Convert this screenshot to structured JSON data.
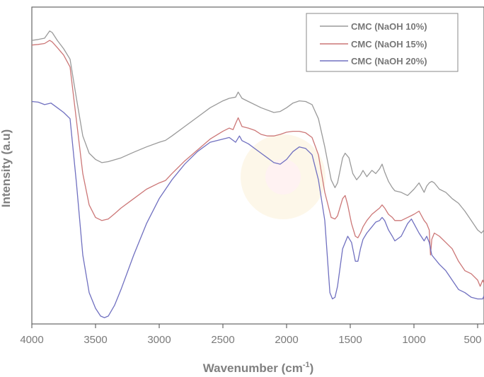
{
  "chart_data": {
    "type": "line",
    "title": "",
    "xlabel_main": "Wavenumber (cm",
    "xlabel_sup": "-1",
    "xlabel_close": ")",
    "ylabel": "Intensity (a.u)",
    "xlim": [
      4000,
      450
    ],
    "x_reversed": true,
    "xticks": [
      4000,
      3500,
      3000,
      2500,
      2000,
      1500,
      1000,
      500
    ],
    "y_ticks_shown": false,
    "ylim": [
      0,
      1
    ],
    "legend_position": "top-right",
    "series": [
      {
        "name": "CMC (NaOH 10%)",
        "color": "#9a9a9a",
        "points": [
          [
            4000,
            0.905
          ],
          [
            3950,
            0.908
          ],
          [
            3900,
            0.912
          ],
          [
            3860,
            0.935
          ],
          [
            3840,
            0.93
          ],
          [
            3800,
            0.905
          ],
          [
            3750,
            0.878
          ],
          [
            3700,
            0.845
          ],
          [
            3650,
            0.72
          ],
          [
            3600,
            0.6
          ],
          [
            3550,
            0.545
          ],
          [
            3500,
            0.525
          ],
          [
            3450,
            0.515
          ],
          [
            3400,
            0.518
          ],
          [
            3300,
            0.53
          ],
          [
            3200,
            0.548
          ],
          [
            3100,
            0.565
          ],
          [
            3000,
            0.58
          ],
          [
            2950,
            0.586
          ],
          [
            2900,
            0.6
          ],
          [
            2800,
            0.63
          ],
          [
            2700,
            0.66
          ],
          [
            2600,
            0.69
          ],
          [
            2500,
            0.712
          ],
          [
            2450,
            0.72
          ],
          [
            2400,
            0.724
          ],
          [
            2380,
            0.74
          ],
          [
            2350,
            0.72
          ],
          [
            2300,
            0.71
          ],
          [
            2200,
            0.69
          ],
          [
            2100,
            0.675
          ],
          [
            2050,
            0.678
          ],
          [
            2000,
            0.69
          ],
          [
            1950,
            0.705
          ],
          [
            1900,
            0.712
          ],
          [
            1850,
            0.71
          ],
          [
            1800,
            0.7
          ],
          [
            1750,
            0.655
          ],
          [
            1700,
            0.565
          ],
          [
            1650,
            0.46
          ],
          [
            1620,
            0.435
          ],
          [
            1600,
            0.45
          ],
          [
            1560,
            0.53
          ],
          [
            1540,
            0.545
          ],
          [
            1510,
            0.53
          ],
          [
            1480,
            0.48
          ],
          [
            1450,
            0.46
          ],
          [
            1420,
            0.475
          ],
          [
            1400,
            0.49
          ],
          [
            1370,
            0.47
          ],
          [
            1330,
            0.49
          ],
          [
            1300,
            0.48
          ],
          [
            1270,
            0.495
          ],
          [
            1250,
            0.51
          ],
          [
            1230,
            0.485
          ],
          [
            1200,
            0.455
          ],
          [
            1170,
            0.435
          ],
          [
            1150,
            0.425
          ],
          [
            1100,
            0.42
          ],
          [
            1050,
            0.41
          ],
          [
            1000,
            0.43
          ],
          [
            960,
            0.45
          ],
          [
            920,
            0.42
          ],
          [
            900,
            0.44
          ],
          [
            880,
            0.45
          ],
          [
            860,
            0.455
          ],
          [
            840,
            0.45
          ],
          [
            800,
            0.43
          ],
          [
            750,
            0.42
          ],
          [
            700,
            0.4
          ],
          [
            650,
            0.385
          ],
          [
            600,
            0.36
          ],
          [
            550,
            0.33
          ],
          [
            500,
            0.3
          ],
          [
            470,
            0.29
          ],
          [
            450,
            0.3
          ]
        ]
      },
      {
        "name": "CMC (NaOH 15%)",
        "color": "#cc7777",
        "points": [
          [
            4000,
            0.89
          ],
          [
            3950,
            0.892
          ],
          [
            3900,
            0.895
          ],
          [
            3860,
            0.905
          ],
          [
            3840,
            0.9
          ],
          [
            3800,
            0.882
          ],
          [
            3750,
            0.858
          ],
          [
            3700,
            0.82
          ],
          [
            3650,
            0.65
          ],
          [
            3600,
            0.48
          ],
          [
            3550,
            0.38
          ],
          [
            3500,
            0.34
          ],
          [
            3450,
            0.33
          ],
          [
            3400,
            0.335
          ],
          [
            3350,
            0.352
          ],
          [
            3300,
            0.37
          ],
          [
            3200,
            0.4
          ],
          [
            3100,
            0.43
          ],
          [
            3000,
            0.45
          ],
          [
            2950,
            0.458
          ],
          [
            2900,
            0.48
          ],
          [
            2800,
            0.52
          ],
          [
            2700,
            0.555
          ],
          [
            2600,
            0.59
          ],
          [
            2500,
            0.615
          ],
          [
            2450,
            0.625
          ],
          [
            2420,
            0.62
          ],
          [
            2400,
            0.64
          ],
          [
            2380,
            0.658
          ],
          [
            2350,
            0.63
          ],
          [
            2300,
            0.625
          ],
          [
            2250,
            0.618
          ],
          [
            2200,
            0.605
          ],
          [
            2150,
            0.6
          ],
          [
            2100,
            0.6
          ],
          [
            2050,
            0.605
          ],
          [
            2000,
            0.612
          ],
          [
            1950,
            0.615
          ],
          [
            1900,
            0.615
          ],
          [
            1850,
            0.61
          ],
          [
            1800,
            0.595
          ],
          [
            1750,
            0.54
          ],
          [
            1700,
            0.42
          ],
          [
            1650,
            0.34
          ],
          [
            1620,
            0.335
          ],
          [
            1600,
            0.345
          ],
          [
            1560,
            0.4
          ],
          [
            1540,
            0.41
          ],
          [
            1520,
            0.38
          ],
          [
            1490,
            0.32
          ],
          [
            1460,
            0.28
          ],
          [
            1440,
            0.275
          ],
          [
            1420,
            0.29
          ],
          [
            1400,
            0.31
          ],
          [
            1370,
            0.33
          ],
          [
            1330,
            0.35
          ],
          [
            1300,
            0.36
          ],
          [
            1270,
            0.37
          ],
          [
            1250,
            0.38
          ],
          [
            1230,
            0.37
          ],
          [
            1200,
            0.35
          ],
          [
            1170,
            0.34
          ],
          [
            1150,
            0.33
          ],
          [
            1100,
            0.33
          ],
          [
            1050,
            0.34
          ],
          [
            1000,
            0.35
          ],
          [
            960,
            0.36
          ],
          [
            920,
            0.33
          ],
          [
            900,
            0.32
          ],
          [
            880,
            0.3
          ],
          [
            870,
            0.22
          ],
          [
            860,
            0.27
          ],
          [
            840,
            0.29
          ],
          [
            800,
            0.28
          ],
          [
            750,
            0.26
          ],
          [
            700,
            0.24
          ],
          [
            650,
            0.2
          ],
          [
            600,
            0.17
          ],
          [
            550,
            0.16
          ],
          [
            500,
            0.14
          ],
          [
            480,
            0.12
          ],
          [
            460,
            0.14
          ],
          [
            450,
            0.13
          ]
        ]
      },
      {
        "name": "CMC (NaOH 20%)",
        "color": "#7070c0",
        "points": [
          [
            4000,
            0.71
          ],
          [
            3950,
            0.708
          ],
          [
            3900,
            0.7
          ],
          [
            3850,
            0.705
          ],
          [
            3800,
            0.69
          ],
          [
            3750,
            0.675
          ],
          [
            3700,
            0.655
          ],
          [
            3650,
            0.45
          ],
          [
            3600,
            0.22
          ],
          [
            3550,
            0.1
          ],
          [
            3500,
            0.05
          ],
          [
            3460,
            0.025
          ],
          [
            3430,
            0.02
          ],
          [
            3400,
            0.025
          ],
          [
            3350,
            0.06
          ],
          [
            3300,
            0.11
          ],
          [
            3200,
            0.22
          ],
          [
            3100,
            0.32
          ],
          [
            3000,
            0.4
          ],
          [
            2900,
            0.46
          ],
          [
            2800,
            0.51
          ],
          [
            2700,
            0.55
          ],
          [
            2600,
            0.58
          ],
          [
            2500,
            0.59
          ],
          [
            2450,
            0.595
          ],
          [
            2400,
            0.58
          ],
          [
            2370,
            0.6
          ],
          [
            2350,
            0.585
          ],
          [
            2300,
            0.575
          ],
          [
            2200,
            0.545
          ],
          [
            2150,
            0.53
          ],
          [
            2100,
            0.515
          ],
          [
            2050,
            0.51
          ],
          [
            2000,
            0.525
          ],
          [
            1950,
            0.55
          ],
          [
            1900,
            0.565
          ],
          [
            1850,
            0.56
          ],
          [
            1800,
            0.54
          ],
          [
            1750,
            0.46
          ],
          [
            1700,
            0.33
          ],
          [
            1660,
            0.1
          ],
          [
            1640,
            0.08
          ],
          [
            1620,
            0.085
          ],
          [
            1600,
            0.12
          ],
          [
            1560,
            0.24
          ],
          [
            1520,
            0.28
          ],
          [
            1490,
            0.26
          ],
          [
            1460,
            0.2
          ],
          [
            1440,
            0.2
          ],
          [
            1420,
            0.24
          ],
          [
            1400,
            0.27
          ],
          [
            1370,
            0.29
          ],
          [
            1330,
            0.31
          ],
          [
            1300,
            0.325
          ],
          [
            1270,
            0.33
          ],
          [
            1250,
            0.34
          ],
          [
            1230,
            0.33
          ],
          [
            1200,
            0.3
          ],
          [
            1170,
            0.28
          ],
          [
            1150,
            0.265
          ],
          [
            1100,
            0.28
          ],
          [
            1050,
            0.32
          ],
          [
            1020,
            0.335
          ],
          [
            1000,
            0.32
          ],
          [
            960,
            0.29
          ],
          [
            920,
            0.265
          ],
          [
            900,
            0.28
          ],
          [
            880,
            0.26
          ],
          [
            860,
            0.22
          ],
          [
            840,
            0.21
          ],
          [
            800,
            0.19
          ],
          [
            750,
            0.17
          ],
          [
            700,
            0.14
          ],
          [
            650,
            0.11
          ],
          [
            600,
            0.1
          ],
          [
            550,
            0.085
          ],
          [
            500,
            0.08
          ],
          [
            460,
            0.08
          ],
          [
            450,
            0.09
          ]
        ]
      }
    ]
  }
}
